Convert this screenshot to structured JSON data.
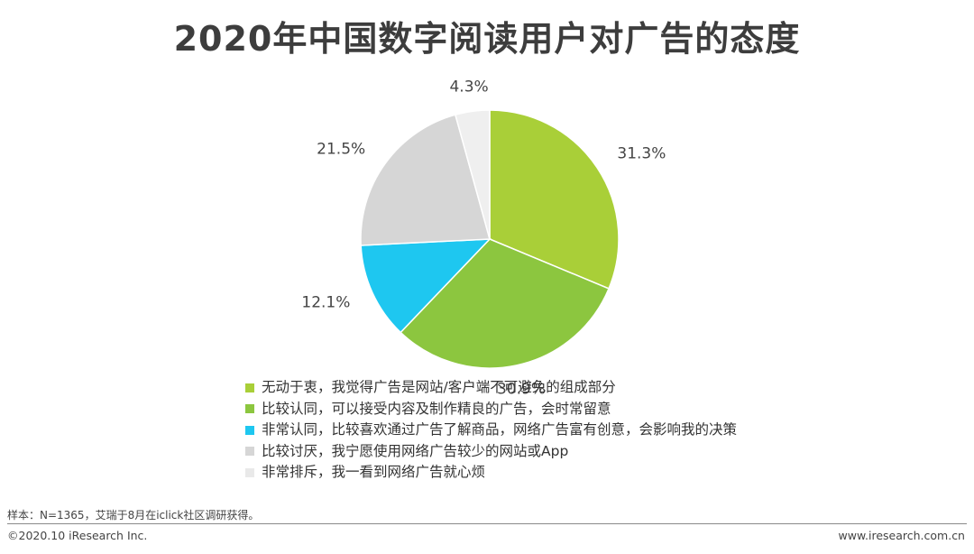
{
  "title": "2020年中国数字阅读用户对广告的态度",
  "chart_data": {
    "type": "pie",
    "slices": [
      {
        "label": "无动于衷，我觉得广告是网站/客户端不可避免的组成部分",
        "value": 31.3,
        "value_label": "31.3%",
        "color": "#a9cf38"
      },
      {
        "label": "比较认同，可以接受内容及制作精良的广告，会时常留意",
        "value": 30.9,
        "value_label": "30.9%",
        "color": "#8cc63f"
      },
      {
        "label": "非常认同，比较喜欢通过广告了解商品，网络广告富有创意，会影响我的决策",
        "value": 12.1,
        "value_label": "12.1%",
        "color": "#1ec7f0"
      },
      {
        "label": "比较讨厌，我宁愿使用网络广告较少的网站或App",
        "value": 21.5,
        "value_label": "21.5%",
        "color": "#d6d6d6"
      },
      {
        "label": "非常排斥，我一看到网络广告就心烦",
        "value": 4.3,
        "value_label": "4.3%",
        "color": "#efefef"
      }
    ],
    "start": "12 o'clock",
    "direction": "clockwise",
    "legend_placement": "bottom-center"
  },
  "footer": {
    "note": "样本：N=1365，艾瑞于8月在iclick社区调研获得。",
    "copyright": "©2020.10 iResearch Inc.",
    "website": "www.iresearch.com.cn"
  }
}
